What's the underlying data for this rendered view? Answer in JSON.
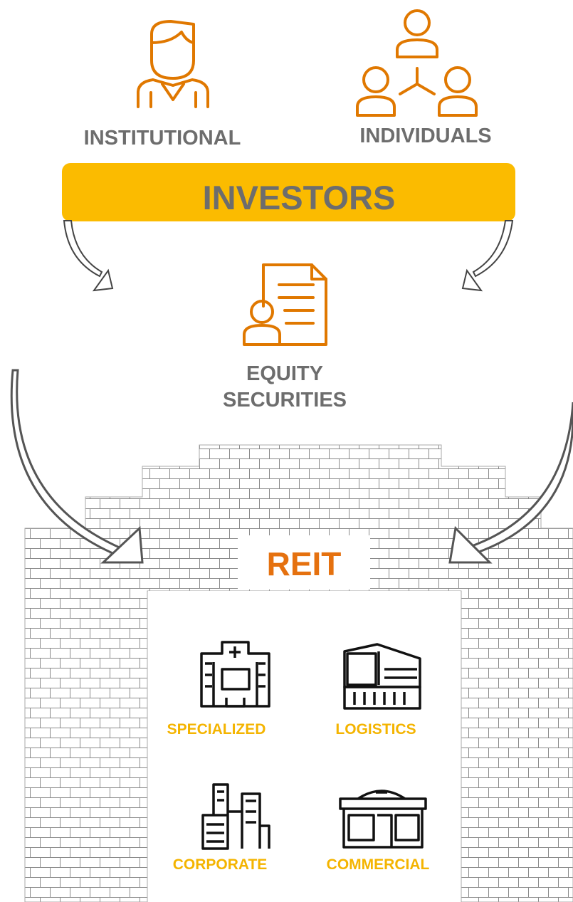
{
  "investors": {
    "institutional": "INSTITUTIONAL",
    "individuals": "INDIVIDUALS",
    "title": "INVESTORS"
  },
  "equity": {
    "lines": [
      "EQUITY",
      "SECURITIES"
    ]
  },
  "reit": {
    "title": "REIT",
    "sectors": [
      "SPECIALIZED",
      "LOGISTICS",
      "CORPORATE",
      "COMMERCIAL"
    ]
  }
}
